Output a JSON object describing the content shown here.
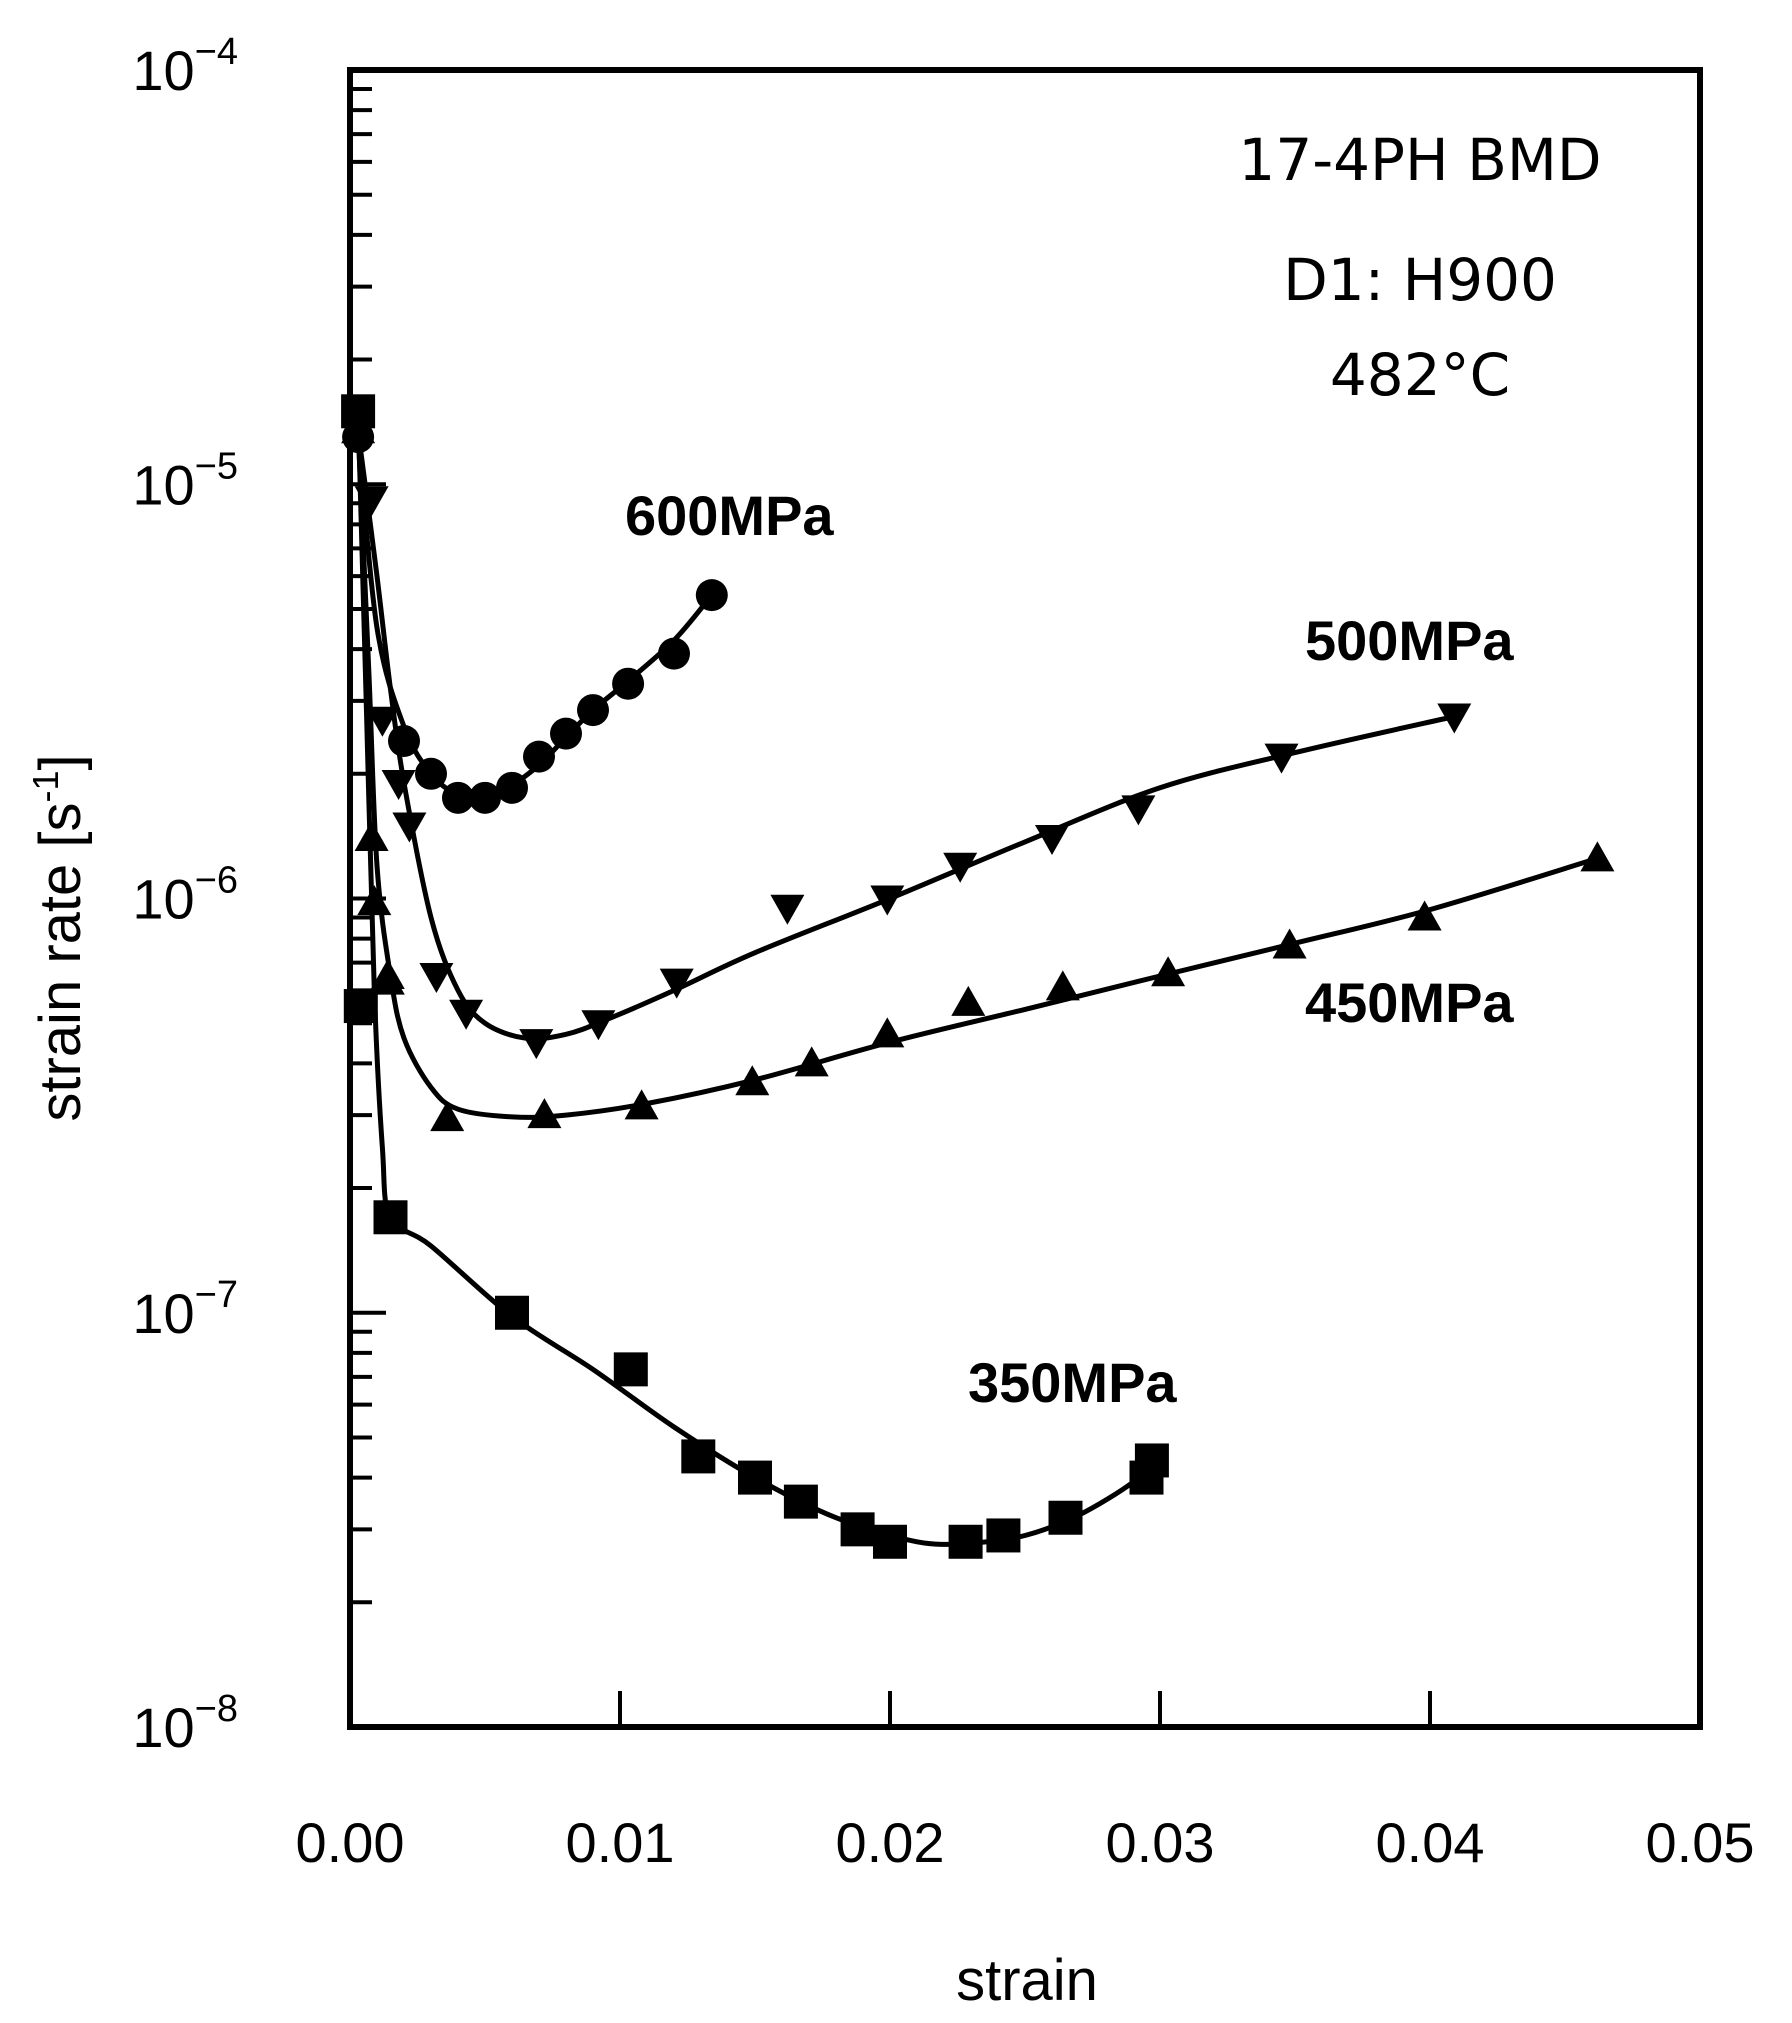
{
  "chart_data": {
    "type": "line",
    "title": "",
    "xlabel": "strain",
    "ylabel": "strain rate [s",
    "ylabel_superscript": "-1",
    "ylabel_close": "]",
    "xlim": [
      0.0,
      0.05
    ],
    "ylim": [
      1e-08,
      0.0001
    ],
    "yscale": "log",
    "x_ticks": [
      "0.00",
      "0.01",
      "0.02",
      "0.03",
      "0.04",
      "0.05"
    ],
    "y_ticks": [
      {
        "base": "10",
        "exp": "−4"
      },
      {
        "base": "10",
        "exp": "−5"
      },
      {
        "base": "10",
        "exp": "−6"
      },
      {
        "base": "10",
        "exp": "−7"
      },
      {
        "base": "10",
        "exp": "−8"
      }
    ],
    "annotations": [
      "17-4PH BMD",
      "D1: H900",
      "482°C"
    ],
    "series": [
      {
        "name": "600MPa",
        "marker": "circle",
        "points": [
          [
            0.0003,
            1.3e-05
          ],
          [
            0.002,
            2.4e-06
          ],
          [
            0.003,
            2e-06
          ],
          [
            0.004,
            1.75e-06
          ],
          [
            0.005,
            1.75e-06
          ],
          [
            0.006,
            1.85e-06
          ],
          [
            0.007,
            2.2e-06
          ],
          [
            0.008,
            2.5e-06
          ],
          [
            0.009,
            2.85e-06
          ],
          [
            0.0103,
            3.3e-06
          ],
          [
            0.012,
            3.9e-06
          ],
          [
            0.0134,
            5.4e-06
          ]
        ],
        "curve": [
          [
            0.0003,
            1.3e-05
          ],
          [
            0.001,
            4.5e-06
          ],
          [
            0.002,
            2.6e-06
          ],
          [
            0.003,
            2e-06
          ],
          [
            0.004,
            1.78e-06
          ],
          [
            0.005,
            1.76e-06
          ],
          [
            0.006,
            1.88e-06
          ],
          [
            0.007,
            2.1e-06
          ],
          [
            0.008,
            2.45e-06
          ],
          [
            0.009,
            2.85e-06
          ],
          [
            0.0103,
            3.35e-06
          ],
          [
            0.012,
            4.2e-06
          ],
          [
            0.0134,
            5.4e-06
          ]
        ]
      },
      {
        "name": "500MPa",
        "marker": "triangle-down",
        "points": [
          [
            0.0008,
            9.2e-06
          ],
          [
            0.0012,
            2.7e-06
          ],
          [
            0.0018,
            1.9e-06
          ],
          [
            0.0022,
            1.5e-06
          ],
          [
            0.0032,
            6.5e-07
          ],
          [
            0.0043,
            5.3e-07
          ],
          [
            0.0069,
            4.5e-07
          ],
          [
            0.0092,
            5e-07
          ],
          [
            0.0121,
            6.3e-07
          ],
          [
            0.0162,
            9.5e-07
          ],
          [
            0.0199,
            1e-06
          ],
          [
            0.0226,
            1.2e-06
          ],
          [
            0.026,
            1.4e-06
          ],
          [
            0.0292,
            1.65e-06
          ],
          [
            0.0345,
            2.2e-06
          ],
          [
            0.0409,
            2.75e-06
          ]
        ],
        "curve": [
          [
            0.0004,
            1.2e-05
          ],
          [
            0.001,
            6e-06
          ],
          [
            0.0015,
            3.2e-06
          ],
          [
            0.002,
            1.9e-06
          ],
          [
            0.003,
            9e-07
          ],
          [
            0.004,
            6e-07
          ],
          [
            0.005,
            5e-07
          ],
          [
            0.0065,
            4.6e-07
          ],
          [
            0.008,
            4.7e-07
          ],
          [
            0.0095,
            5.1e-07
          ],
          [
            0.012,
            6e-07
          ],
          [
            0.015,
            7.4e-07
          ],
          [
            0.02,
            1e-06
          ],
          [
            0.025,
            1.37e-06
          ],
          [
            0.03,
            1.85e-06
          ],
          [
            0.035,
            2.25e-06
          ],
          [
            0.0409,
            2.75e-06
          ]
        ]
      },
      {
        "name": "450MPa",
        "marker": "triangle-up",
        "points": [
          [
            0.0003,
            1.35e-05
          ],
          [
            0.0008,
            1.4e-06
          ],
          [
            0.0009,
            9.8e-07
          ],
          [
            0.0014,
            6.5e-07
          ],
          [
            0.0014,
            6.3e-07
          ],
          [
            0.0036,
            2.95e-07
          ],
          [
            0.0072,
            3e-07
          ],
          [
            0.0108,
            3.15e-07
          ],
          [
            0.0149,
            3.6e-07
          ],
          [
            0.0171,
            4e-07
          ],
          [
            0.0199,
            4.7e-07
          ],
          [
            0.0229,
            5.6e-07
          ],
          [
            0.0264,
            6.1e-07
          ],
          [
            0.0303,
            6.6e-07
          ],
          [
            0.0348,
            7.7e-07
          ],
          [
            0.0398,
            9e-07
          ],
          [
            0.0462,
            1.25e-06
          ]
        ],
        "curve": [
          [
            0.0003,
            1.35e-05
          ],
          [
            0.0007,
            3.5e-06
          ],
          [
            0.001,
            1.2e-06
          ],
          [
            0.0015,
            6.5e-07
          ],
          [
            0.002,
            4.6e-07
          ],
          [
            0.003,
            3.5e-07
          ],
          [
            0.004,
            3.1e-07
          ],
          [
            0.006,
            2.97e-07
          ],
          [
            0.008,
            3e-07
          ],
          [
            0.011,
            3.2e-07
          ],
          [
            0.015,
            3.65e-07
          ],
          [
            0.02,
            4.5e-07
          ],
          [
            0.025,
            5.4e-07
          ],
          [
            0.03,
            6.5e-07
          ],
          [
            0.035,
            7.8e-07
          ],
          [
            0.04,
            9.4e-07
          ],
          [
            0.0462,
            1.25e-06
          ]
        ]
      },
      {
        "name": "350MPa",
        "marker": "square",
        "points": [
          [
            0.0003,
            1.5e-05
          ],
          [
            0.0004,
            5.5e-07
          ],
          [
            0.0015,
            1.7e-07
          ],
          [
            0.006,
            1e-07
          ],
          [
            0.0104,
            7.3e-08
          ],
          [
            0.0129,
            4.5e-08
          ],
          [
            0.015,
            4e-08
          ],
          [
            0.0167,
            3.5e-08
          ],
          [
            0.0188,
            3e-08
          ],
          [
            0.02,
            2.8e-08
          ],
          [
            0.0228,
            2.8e-08
          ],
          [
            0.0242,
            2.9e-08
          ],
          [
            0.0265,
            3.2e-08
          ],
          [
            0.0295,
            4e-08
          ],
          [
            0.0297,
            4.4e-08
          ]
        ],
        "curve": [
          [
            0.0003,
            1.5e-05
          ],
          [
            0.0006,
            3e-06
          ],
          [
            0.0009,
            6e-07
          ],
          [
            0.0012,
            2.5e-07
          ],
          [
            0.0015,
            1.7e-07
          ],
          [
            0.003,
            1.45e-07
          ],
          [
            0.006,
            9.8e-08
          ],
          [
            0.009,
            7.3e-08
          ],
          [
            0.012,
            5.3e-08
          ],
          [
            0.015,
            4e-08
          ],
          [
            0.018,
            3.2e-08
          ],
          [
            0.021,
            2.8e-08
          ],
          [
            0.023,
            2.78e-08
          ],
          [
            0.025,
            2.9e-08
          ],
          [
            0.027,
            3.25e-08
          ],
          [
            0.029,
            3.9e-08
          ],
          [
            0.0297,
            4.4e-08
          ]
        ]
      }
    ]
  }
}
